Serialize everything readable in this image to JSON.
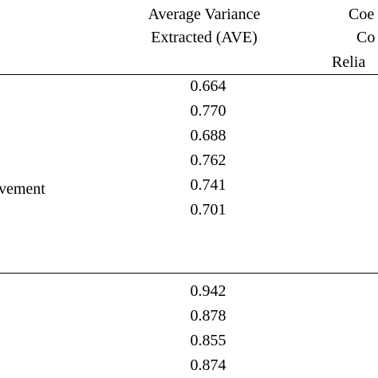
{
  "table": {
    "header": {
      "ave": [
        "Average Variance",
        "Extracted (AVE)"
      ],
      "next": [
        "Coe",
        "Co",
        "Relia"
      ]
    },
    "groups": [
      {
        "label": "vement",
        "values": [
          "0.664",
          "0.770",
          "0.688",
          "0.762",
          "0.741",
          "0.701"
        ]
      },
      {
        "values": [
          "0.942",
          "0.878",
          "0.855",
          "0.874"
        ]
      }
    ]
  }
}
